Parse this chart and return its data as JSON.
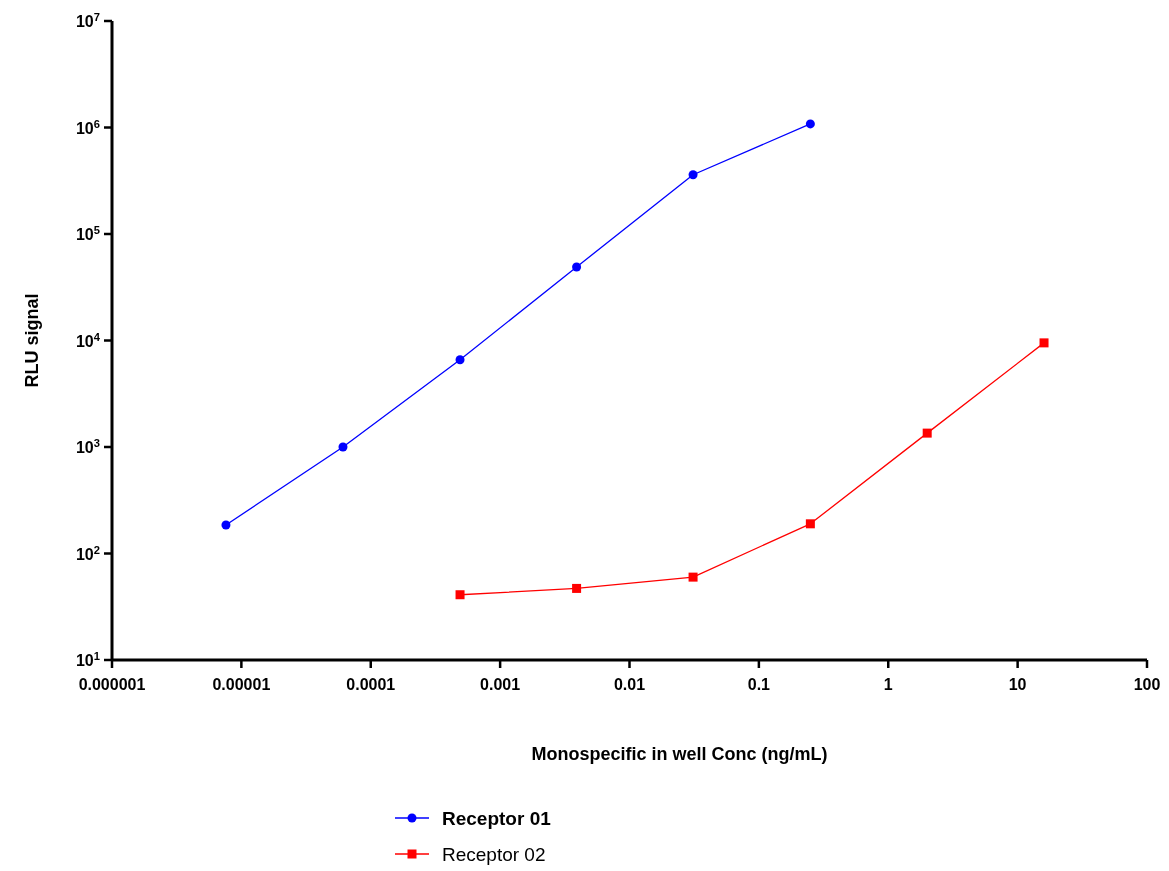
{
  "chart_data": {
    "type": "line",
    "xlabel": "Monospecific in well Conc (ng/mL)",
    "ylabel": "RLU signal",
    "log": "xy",
    "grid": false,
    "legend": "bottom",
    "line_style": "solid",
    "xlim": [
      1e-06,
      100
    ],
    "xticks": [
      {
        "value": 1e-06,
        "label": "0.000001"
      },
      {
        "value": 1e-05,
        "label": "0.00001"
      },
      0.0001,
      0.001,
      0.01,
      0.1,
      1,
      10,
      100
    ],
    "ylim": [
      10,
      10000000
    ],
    "yticks": [
      {
        "value": 10,
        "label": "10$^{1}$"
      },
      {
        "value": 100,
        "label": "10$^{2}$"
      },
      {
        "value": 1000,
        "label": "10$^{3}$"
      },
      {
        "value": 10000,
        "label": "10$^{4}$"
      },
      {
        "value": 100000,
        "label": "10$^{5}$"
      },
      {
        "value": 1000000,
        "label": "10$^{6}$"
      },
      {
        "value": 10000000,
        "label": "10$^{7}$"
      }
    ],
    "series": [
      {
        "name": "Receptor 01",
        "color": "#0000ff",
        "marker": "circle",
        "x": [
          7.6e-06,
          6.1e-05,
          0.00049,
          0.0039,
          0.031,
          0.25
        ],
        "values": [
          185,
          1000,
          6600,
          49000,
          360000,
          1080000
        ]
      },
      {
        "name": "Receptor 02",
        "color": "#ff0000",
        "marker": "square",
        "x": [
          0.00049,
          0.0039,
          0.031,
          0.25,
          2,
          16
        ],
        "values": [
          41,
          47,
          60,
          190,
          1350,
          9500
        ]
      }
    ]
  }
}
